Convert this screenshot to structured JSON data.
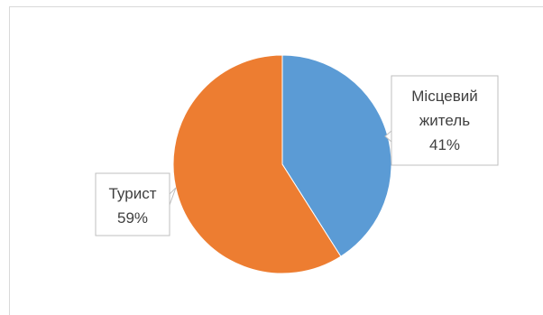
{
  "chart_data": {
    "type": "pie",
    "title": "",
    "categories": [
      "Місцевий житель",
      "Турист"
    ],
    "values": [
      41,
      59
    ],
    "data_labels": [
      {
        "lines": [
          "Місцевий",
          "житель",
          "41%"
        ]
      },
      {
        "lines": [
          "Турист",
          "59%"
        ]
      }
    ],
    "colors": [
      "#5b9bd5",
      "#ed7d31"
    ],
    "legend": "none",
    "start_angle": "top, clockwise"
  }
}
